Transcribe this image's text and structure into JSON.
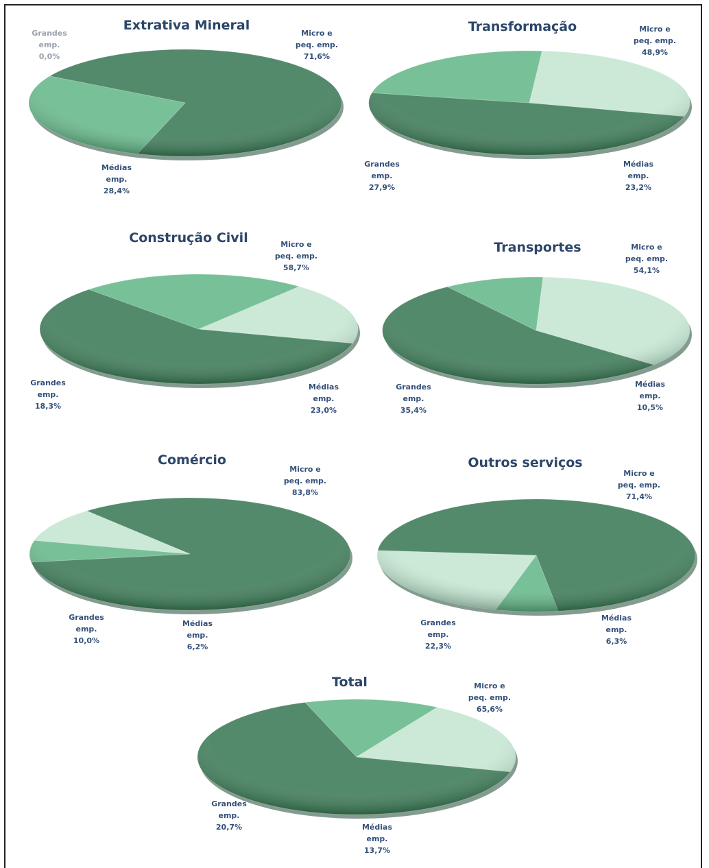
{
  "chart_data": [
    {
      "type": "pie",
      "title": "Extrativa Mineral",
      "slices": [
        {
          "label_lines": [
            "Micro e",
            "peq. emp.",
            "71,6%"
          ],
          "value": 71.6
        },
        {
          "label_lines": [
            "Médias",
            "emp.",
            "28,4%"
          ],
          "value": 28.4
        },
        {
          "label_lines": [
            "Grandes",
            "emp.",
            "0,0%"
          ],
          "value": 0.0
        }
      ]
    },
    {
      "type": "pie",
      "title": "Transformação",
      "slices": [
        {
          "label_lines": [
            "Micro e",
            "peq. emp.",
            "48,9%"
          ],
          "value": 48.9
        },
        {
          "label_lines": [
            "Médias",
            "emp.",
            "23,2%"
          ],
          "value": 23.2
        },
        {
          "label_lines": [
            "Grandes",
            "emp.",
            "27,9%"
          ],
          "value": 27.9
        }
      ]
    },
    {
      "type": "pie",
      "title": "Construção Civil",
      "slices": [
        {
          "label_lines": [
            "Micro e",
            "peq. emp.",
            "58,7%"
          ],
          "value": 58.7
        },
        {
          "label_lines": [
            "Médias",
            "emp.",
            "23,0%"
          ],
          "value": 23.0
        },
        {
          "label_lines": [
            "Grandes",
            "emp.",
            "18,3%"
          ],
          "value": 18.3
        }
      ]
    },
    {
      "type": "pie",
      "title": "Transportes",
      "slices": [
        {
          "label_lines": [
            "Micro e",
            "peq. emp.",
            "54,1%"
          ],
          "value": 54.1
        },
        {
          "label_lines": [
            "Médias",
            "emp.",
            "10,5%"
          ],
          "value": 10.5
        },
        {
          "label_lines": [
            "Grandes",
            "emp.",
            "35,4%"
          ],
          "value": 35.4
        }
      ]
    },
    {
      "type": "pie",
      "title": "Comércio",
      "slices": [
        {
          "label_lines": [
            "Micro e",
            "peq. emp.",
            "83,8%"
          ],
          "value": 83.8
        },
        {
          "label_lines": [
            "Médias",
            "emp.",
            "6,2%"
          ],
          "value": 6.2
        },
        {
          "label_lines": [
            "Grandes",
            "emp.",
            "10,0%"
          ],
          "value": 10.0
        }
      ]
    },
    {
      "type": "pie",
      "title": "Outros serviços",
      "slices": [
        {
          "label_lines": [
            "Micro e",
            "peq. emp.",
            "71,4%"
          ],
          "value": 71.4
        },
        {
          "label_lines": [
            "Médias",
            "emp.",
            "6,3%"
          ],
          "value": 6.3
        },
        {
          "label_lines": [
            "Grandes",
            "emp.",
            "22,3%"
          ],
          "value": 22.3
        }
      ]
    },
    {
      "type": "pie",
      "title": "Total",
      "slices": [
        {
          "label_lines": [
            "Micro e",
            "peq. emp.",
            "65,6%"
          ],
          "value": 65.6
        },
        {
          "label_lines": [
            "Médias",
            "emp.",
            "13,7%"
          ],
          "value": 13.7
        },
        {
          "label_lines": [
            "Grandes",
            "emp.",
            "20,7%"
          ],
          "value": 20.7
        }
      ]
    }
  ],
  "colors": {
    "micro": "#3d7a58",
    "medias": "#66b88a",
    "grandes": "#c5e6d2",
    "title": "#2c4668",
    "label": "#34507a"
  }
}
